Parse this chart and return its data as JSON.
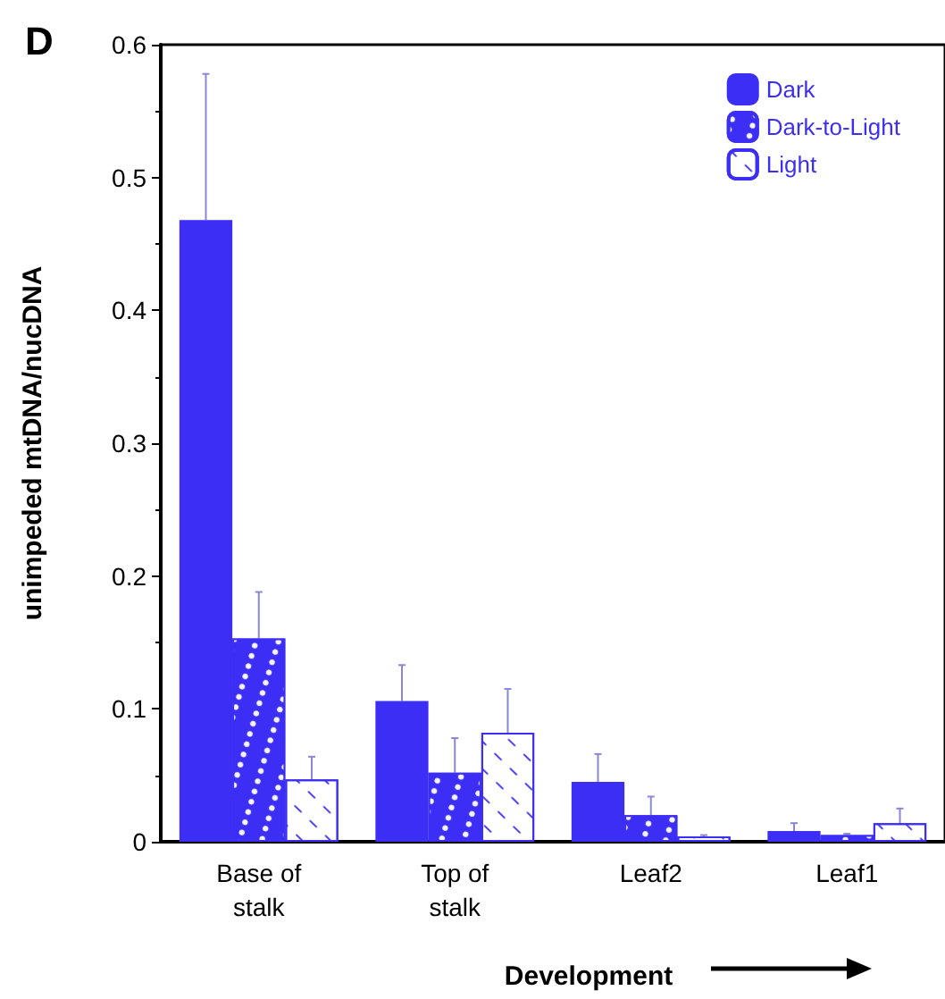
{
  "chart_data": {
    "type": "bar",
    "ylabel": "unimpeded mtDNA/nucDNA",
    "xlabel": "Development",
    "categories": [
      "Base of\nstalk",
      "Top of\nstalk",
      "Leaf2",
      "Leaf1"
    ],
    "series": [
      {
        "name": "Dark",
        "color": "#3c2ef5",
        "values": [
          0.468,
          0.106,
          0.045,
          0.008
        ],
        "errors": [
          [
            0.468,
            0.578
          ],
          [
            0.106,
            0.133
          ],
          [
            0.045,
            0.066
          ],
          [
            0.008,
            0.014
          ]
        ]
      },
      {
        "name": "Dark-to-Light",
        "color": "#3c2ef5",
        "values": [
          0.153,
          0.052,
          0.02,
          0.005
        ],
        "errors": [
          [
            0.153,
            0.188
          ],
          [
            0.052,
            0.078
          ],
          [
            0.02,
            0.034
          ],
          [
            0.005,
            0.006
          ]
        ]
      },
      {
        "name": "Light",
        "color": "#ffffff",
        "values": [
          0.047,
          0.082,
          0.004,
          0.014
        ],
        "errors": [
          [
            0.047,
            0.064
          ],
          [
            0.082,
            0.115
          ],
          [
            0.004,
            0.005
          ],
          [
            0.014,
            0.025
          ]
        ]
      }
    ],
    "ylim": [
      0,
      0.6
    ],
    "yticks": [
      0,
      0.1,
      0.2,
      0.3,
      0.4,
      0.5,
      0.6
    ],
    "legend": "top right",
    "annotations": [
      "D"
    ]
  }
}
